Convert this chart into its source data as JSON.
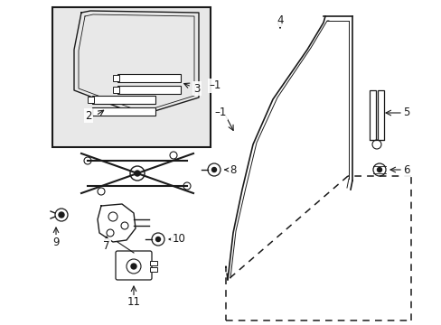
{
  "bg_color": "#ffffff",
  "line_color": "#1a1a1a",
  "gray_fill": "#e8e8e8",
  "label_fontsize": 8.5,
  "figsize": [
    4.89,
    3.6
  ],
  "dpi": 100
}
